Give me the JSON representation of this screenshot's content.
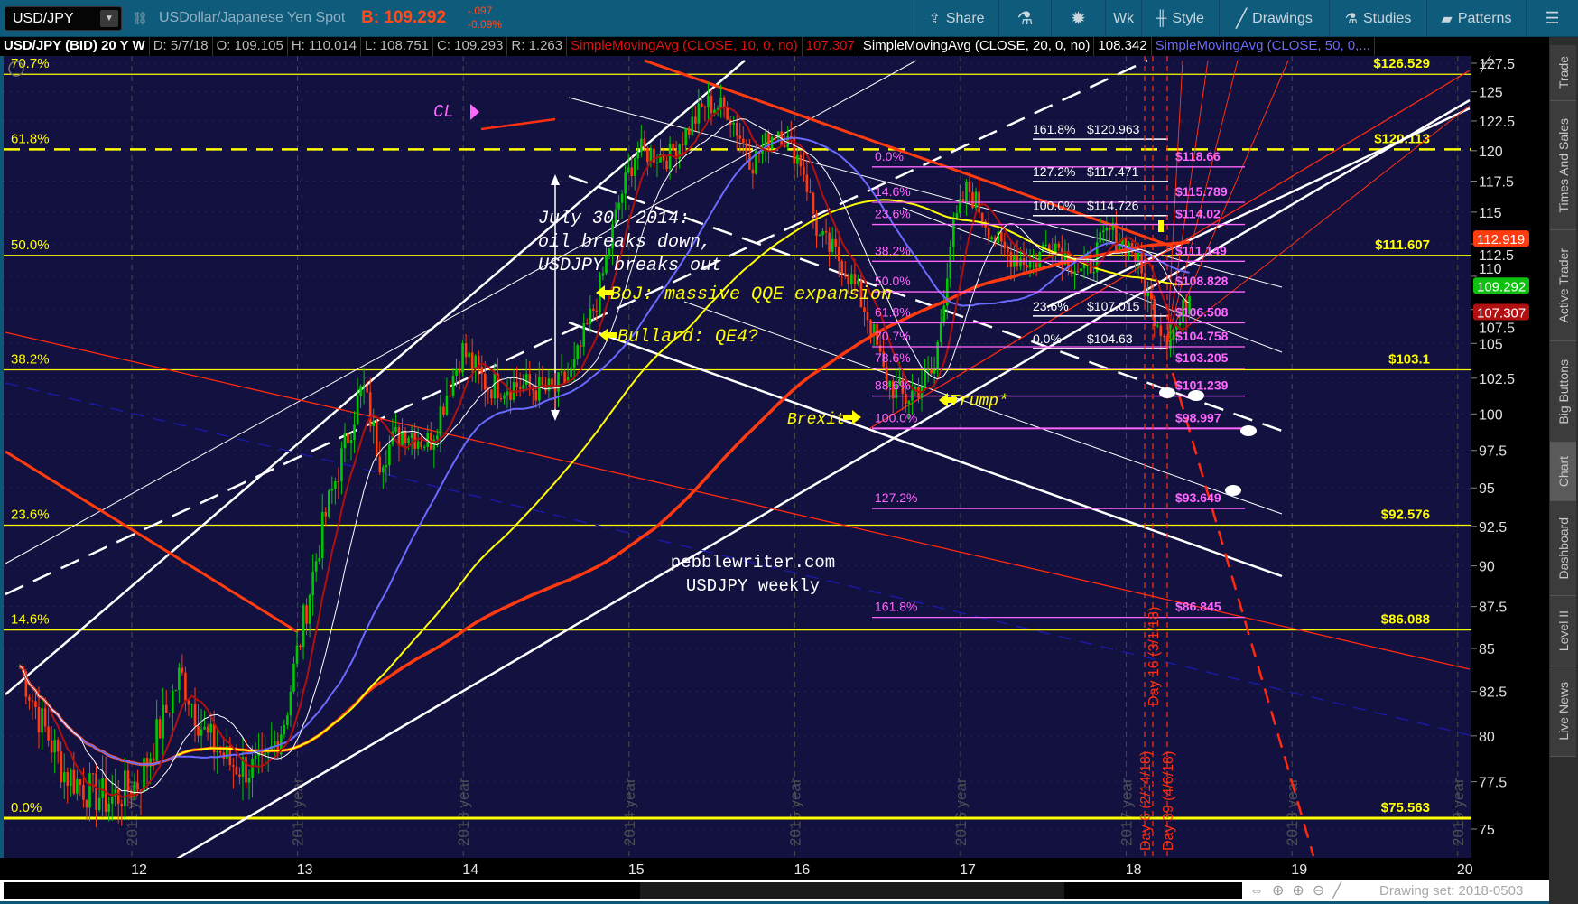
{
  "toolbar": {
    "symbol": "USD/JPY",
    "description": "USDollar/Japanese Yen Spot",
    "bid": "B: 109.292",
    "change": "-.097",
    "change_pct": "-0.09%",
    "share": "Share",
    "timeframe": "Wk",
    "style": "Style",
    "drawings": "Drawings",
    "studies": "Studies",
    "patterns": "Patterns"
  },
  "infobar": {
    "title": "USD/JPY (BID) 20 Y W",
    "date": "D: 5/7/18",
    "open": "O: 109.105",
    "high": "H: 110.014",
    "low": "L: 108.751",
    "close": "C: 109.293",
    "range": "R: 1.263",
    "sma10_label": "SimpleMovingAvg (CLOSE, 10, 0, no)",
    "sma10_value": "107.307",
    "sma20_label": "SimpleMovingAvg (CLOSE, 20, 0, no)",
    "sma20_value": "108.342",
    "sma50_label": "SimpleMovingAvg (CLOSE, 50, 0,..."
  },
  "sidebar": {
    "tabs": [
      "Trade",
      "Times And Sales",
      "Active Trader",
      "Big Buttons",
      "Chart",
      "Dashboard",
      "Level II",
      "Live News"
    ],
    "active": "Chart"
  },
  "bottom": {
    "drawing_set": "Drawing set: 2018-0503"
  },
  "colors": {
    "bg": "#13113f",
    "up": "#00c800",
    "down": "#ff3b10",
    "fib_level": "#ffff00",
    "fib_retrace": "#ff66ff",
    "sma10": "#b01010",
    "sma20": "#ffffff",
    "sma50": "#6a6aff"
  },
  "chart_data": {
    "type": "candlestick",
    "scale": "log",
    "y_range": [
      73.5,
      128
    ],
    "y_ticks": [
      "127.5",
      "125",
      "122.5",
      "120",
      "117.5",
      "115",
      "112.5",
      "110",
      "107.5",
      "105",
      "102.5",
      "100",
      "97.5",
      "95",
      "92.5",
      "90",
      "87.5",
      "85",
      "82.5",
      "80",
      "77.5",
      "75"
    ],
    "x_ticks": [
      "12",
      "13",
      "14",
      "15",
      "16",
      "17",
      "18",
      "19",
      "20"
    ],
    "year_lines": [
      "2011 year",
      "2012 year",
      "2013 year",
      "2014 year",
      "2015 year",
      "2016 year",
      "2017 year",
      "2018 year",
      "2019 year"
    ],
    "price_path": [
      [
        2011.28,
        84
      ],
      [
        2011.4,
        81
      ],
      [
        2011.55,
        78
      ],
      [
        2011.7,
        77
      ],
      [
        2011.82,
        76.5
      ],
      [
        2012.0,
        77.5
      ],
      [
        2012.15,
        81
      ],
      [
        2012.25,
        83.5
      ],
      [
        2012.4,
        80
      ],
      [
        2012.55,
        78.5
      ],
      [
        2012.75,
        78
      ],
      [
        2012.88,
        81
      ],
      [
        2013.0,
        87
      ],
      [
        2013.12,
        93
      ],
      [
        2013.35,
        102
      ],
      [
        2013.45,
        97
      ],
      [
        2013.6,
        99
      ],
      [
        2013.75,
        98
      ],
      [
        2013.95,
        104.5
      ],
      [
        2014.1,
        102
      ],
      [
        2014.3,
        102
      ],
      [
        2014.5,
        101.5
      ],
      [
        2014.62,
        103
      ],
      [
        2014.78,
        109
      ],
      [
        2014.9,
        116
      ],
      [
        2015.0,
        120
      ],
      [
        2015.2,
        119.5
      ],
      [
        2015.42,
        124
      ],
      [
        2015.55,
        123.5
      ],
      [
        2015.7,
        119
      ],
      [
        2015.85,
        122
      ],
      [
        2016.0,
        119
      ],
      [
        2016.1,
        113
      ],
      [
        2016.25,
        111
      ],
      [
        2016.4,
        107
      ],
      [
        2016.5,
        102.5
      ],
      [
        2016.62,
        101
      ],
      [
        2016.8,
        103
      ],
      [
        2016.9,
        113
      ],
      [
        2017.0,
        117
      ],
      [
        2017.2,
        112
      ],
      [
        2017.4,
        111
      ],
      [
        2017.5,
        113
      ],
      [
        2017.7,
        110
      ],
      [
        2017.85,
        113.5
      ],
      [
        2018.0,
        112
      ],
      [
        2018.1,
        108
      ],
      [
        2018.2,
        105.5
      ],
      [
        2018.28,
        106.5
      ],
      [
        2018.35,
        109.3
      ]
    ],
    "fib_levels": [
      {
        "pct": "70.7%",
        "price": 126.529,
        "label": "$126.529"
      },
      {
        "pct": "61.8%",
        "price": 120.113,
        "label": "$120.113",
        "dashed": true
      },
      {
        "pct": "50.0%",
        "price": 111.607,
        "label": "$111.607"
      },
      {
        "pct": "38.2%",
        "price": 103.1,
        "label": "$103.1"
      },
      {
        "pct": "23.6%",
        "price": 92.576,
        "label": "$92.576"
      },
      {
        "pct": "14.6%",
        "price": 86.088,
        "label": "$86.088"
      },
      {
        "pct": "0.0%",
        "price": 75.563,
        "label": "$75.563"
      }
    ],
    "fib_retracement": [
      {
        "pct": "0.0%",
        "price": 118.66,
        "label": "$118.66"
      },
      {
        "pct": "14.6%",
        "price": 115.789,
        "label": "$115.789"
      },
      {
        "pct": "23.6%",
        "price": 114.02,
        "label": "$114.02"
      },
      {
        "pct": "38.2%",
        "price": 111.149,
        "label": "$111.149"
      },
      {
        "pct": "50.0%",
        "price": 108.828,
        "label": "$108.828"
      },
      {
        "pct": "61.8%",
        "price": 106.508,
        "label": "$106.508"
      },
      {
        "pct": "70.7%",
        "price": 104.758,
        "label": "$104.758"
      },
      {
        "pct": "78.6%",
        "price": 103.205,
        "label": "$103.205"
      },
      {
        "pct": "88.6%",
        "price": 101.239,
        "label": "$101.239"
      },
      {
        "pct": "100.0%",
        "price": 98.997,
        "label": "$98.997"
      },
      {
        "pct": "127.2%",
        "price": 93.649,
        "label": "$93.649"
      },
      {
        "pct": "161.8%",
        "price": 86.845,
        "label": "$86.845"
      }
    ],
    "fib_extension": [
      {
        "pct": "161.8%",
        "price": 120.963,
        "label": "$120.963"
      },
      {
        "pct": "127.2%",
        "price": 117.471,
        "label": "$117.471"
      },
      {
        "pct": "100.0%",
        "price": 114.726,
        "label": "$114.726"
      },
      {
        "pct": "23.6%",
        "price": 107.015,
        "label": "$107.015"
      },
      {
        "pct": "0.0%",
        "price": 104.63,
        "label": "$104.63"
      }
    ],
    "badges": [
      {
        "value": "112.919",
        "color": "#ff3b10"
      },
      {
        "value": "109.292",
        "color": "#10c010"
      },
      {
        "value": "107.307",
        "color": "#b01010"
      }
    ],
    "markers": [
      "Day 6 (2/14/18)",
      "Day 16 (3/1/18)",
      "Day 39 (4/6/18)"
    ],
    "annotations": {
      "cl": "CL",
      "july": [
        "July 30, 2014:",
        "oil breaks down,",
        "USDJPY breaks out"
      ],
      "boj": "BoJ: massive QQE expansion",
      "bullard": "Bullard: QE4?",
      "brexit": "Brexit",
      "trump": "Trump*",
      "watermark": [
        "pebblewriter.com",
        "USDJPY weekly"
      ]
    }
  }
}
